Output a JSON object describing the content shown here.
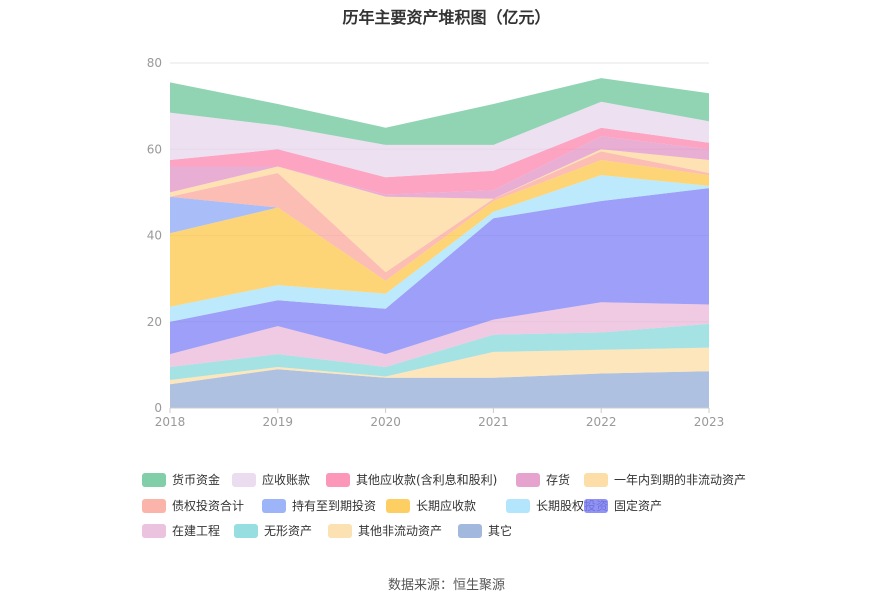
{
  "chart_data": {
    "type": "area",
    "title": "历年主要资产堆积图（亿元）",
    "source": "数据来源：恒生聚源",
    "x": [
      "2018",
      "2019",
      "2020",
      "2021",
      "2022",
      "2023"
    ],
    "ylim": [
      0,
      80
    ],
    "yticks": [
      0,
      20,
      40,
      60,
      80
    ],
    "grid": true,
    "legend_position": "bottom",
    "series": [
      {
        "name": "其它",
        "color": "#93acd7",
        "values": [
          5.5,
          9.0,
          7.0,
          7.0,
          8.0,
          8.5
        ]
      },
      {
        "name": "其他非流动资产",
        "color": "#fcdca5",
        "values": [
          1.0,
          0.5,
          0.3,
          6.0,
          5.5,
          5.5
        ]
      },
      {
        "name": "无形资产",
        "color": "#85d8da",
        "values": [
          3.0,
          3.0,
          2.2,
          4.0,
          4.0,
          5.5
        ]
      },
      {
        "name": "在建工程",
        "color": "#e9b8d8",
        "values": [
          3.0,
          6.5,
          3.0,
          3.5,
          7.0,
          4.5
        ]
      },
      {
        "name": "固定资产",
        "color": "#7e7ff5",
        "values": [
          7.5,
          6.0,
          10.5,
          23.5,
          23.5,
          27.0
        ]
      },
      {
        "name": "长期股权投资",
        "color": "#a6e2fb",
        "values": [
          3.5,
          3.5,
          3.5,
          1.5,
          6.0,
          0.5
        ]
      },
      {
        "name": "长期应收款",
        "color": "#fdc748",
        "values": [
          17.0,
          18.0,
          3.0,
          2.5,
          3.5,
          2.5
        ]
      },
      {
        "name": "持有至到期投资",
        "color": "#8ca8f7",
        "values": [
          8.5,
          0.0,
          0.0,
          0.0,
          0.0,
          0.0
        ]
      },
      {
        "name": "债权投资合计",
        "color": "#f9a79b",
        "values": [
          0.0,
          8.0,
          2.0,
          0.5,
          2.0,
          0.5
        ]
      },
      {
        "name": "一年内到期的非流动资产",
        "color": "#fdd89a",
        "values": [
          1.0,
          1.5,
          17.5,
          0.0,
          0.5,
          3.0
        ]
      },
      {
        "name": "存货",
        "color": "#e293c5",
        "values": [
          6.0,
          0.0,
          0.5,
          2.0,
          3.0,
          2.5
        ]
      },
      {
        "name": "其他应收款(含利息和股利)",
        "color": "#fb85ad",
        "values": [
          1.5,
          4.0,
          4.0,
          4.5,
          2.0,
          1.5
        ]
      },
      {
        "name": "应收账款",
        "color": "#e7d6ec",
        "values": [
          11.0,
          5.5,
          7.5,
          6.0,
          6.0,
          5.0
        ]
      },
      {
        "name": "货币资金",
        "color": "#6bc59a",
        "values": [
          7.0,
          5.0,
          4.0,
          9.5,
          5.5,
          6.5
        ]
      }
    ],
    "legend_order": [
      "货币资金",
      "应收账款",
      "其他应收款(含利息和股利)",
      "存货",
      "一年内到期的非流动资产",
      "债权投资合计",
      "持有至到期投资",
      "长期应收款",
      "长期股权投资",
      "固定资产",
      "在建工程",
      "无形资产",
      "其他非流动资产",
      "其它"
    ]
  }
}
